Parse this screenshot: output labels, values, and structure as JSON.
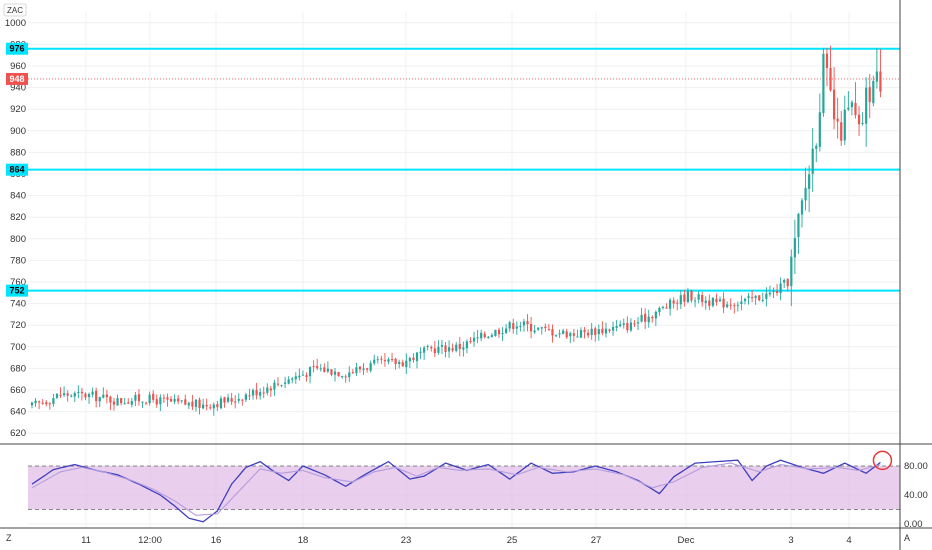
{
  "symbol": "ZAC",
  "corner_left": "Z",
  "corner_right": "A",
  "chart_data": [
    {
      "type": "candlestick",
      "title": "",
      "ylim": [
        610,
        1010
      ],
      "y_ticks": [
        620,
        640,
        660,
        680,
        700,
        720,
        740,
        760,
        780,
        800,
        820,
        840,
        860,
        880,
        900,
        920,
        940,
        960,
        980,
        1000
      ],
      "x_ticks": [
        "11",
        "12:00",
        "16",
        "18",
        "23",
        "25",
        "27",
        "Dec",
        "3",
        "4"
      ],
      "grid": true,
      "horizontal_levels": [
        {
          "value": 976,
          "label": "976",
          "color": "#00e5ff"
        },
        {
          "value": 864,
          "label": "864",
          "color": "#00e5ff"
        },
        {
          "value": 752,
          "label": "752",
          "color": "#00e5ff"
        }
      ],
      "last_price": {
        "value": 948,
        "label": "948",
        "color": "#ef5350"
      },
      "up_color": "#26a69a",
      "down_color": "#ef5350",
      "anchors": [
        [
          0,
          645
        ],
        [
          8,
          656
        ],
        [
          16,
          655
        ],
        [
          24,
          650
        ],
        [
          32,
          652
        ],
        [
          40,
          648
        ],
        [
          48,
          646
        ],
        [
          56,
          651
        ],
        [
          64,
          660
        ],
        [
          72,
          670
        ],
        [
          80,
          680
        ],
        [
          88,
          676
        ],
        [
          96,
          684
        ],
        [
          104,
          686
        ],
        [
          112,
          698
        ],
        [
          120,
          700
        ],
        [
          128,
          712
        ],
        [
          136,
          722
        ],
        [
          144,
          715
        ],
        [
          152,
          712
        ],
        [
          160,
          716
        ],
        [
          168,
          720
        ],
        [
          176,
          734
        ],
        [
          184,
          748
        ],
        [
          192,
          740
        ],
        [
          200,
          742
        ],
        [
          208,
          750
        ],
        [
          212,
          760
        ],
        [
          216,
          830
        ],
        [
          220,
          900
        ],
        [
          222,
          960
        ],
        [
          224,
          930
        ],
        [
          226,
          895
        ],
        [
          228,
          910
        ],
        [
          230,
          920
        ],
        [
          232,
          895
        ],
        [
          234,
          930
        ],
        [
          236,
          945
        ],
        [
          238,
          948
        ]
      ]
    },
    {
      "type": "line",
      "title": "",
      "ylim": [
        0,
        100
      ],
      "y_ticks": [
        0,
        40,
        80
      ],
      "y_tick_labels": [
        "0.00",
        "40.00",
        "80.00"
      ],
      "band": [
        20,
        80
      ],
      "band_color": "#e1bee7",
      "series": [
        {
          "color": "#3f3fbf",
          "anchors": [
            [
              0,
              55
            ],
            [
              6,
              75
            ],
            [
              12,
              82
            ],
            [
              18,
              74
            ],
            [
              24,
              68
            ],
            [
              30,
              55
            ],
            [
              36,
              40
            ],
            [
              40,
              25
            ],
            [
              44,
              8
            ],
            [
              48,
              3
            ],
            [
              52,
              18
            ],
            [
              56,
              55
            ],
            [
              60,
              78
            ],
            [
              64,
              86
            ],
            [
              68,
              72
            ],
            [
              72,
              60
            ],
            [
              76,
              80
            ],
            [
              82,
              68
            ],
            [
              88,
              52
            ],
            [
              94,
              70
            ],
            [
              100,
              86
            ],
            [
              106,
              62
            ],
            [
              110,
              66
            ],
            [
              116,
              84
            ],
            [
              122,
              74
            ],
            [
              128,
              82
            ],
            [
              134,
              62
            ],
            [
              140,
              84
            ],
            [
              146,
              70
            ],
            [
              152,
              72
            ],
            [
              158,
              80
            ],
            [
              164,
              72
            ],
            [
              170,
              60
            ],
            [
              176,
              42
            ],
            [
              180,
              65
            ],
            [
              186,
              84
            ],
            [
              192,
              86
            ],
            [
              198,
              88
            ],
            [
              202,
              60
            ],
            [
              206,
              80
            ],
            [
              210,
              88
            ],
            [
              216,
              78
            ],
            [
              222,
              70
            ],
            [
              228,
              84
            ],
            [
              234,
              70
            ],
            [
              238,
              85
            ]
          ]
        },
        {
          "color": "#b39ddb",
          "anchors": [
            [
              0,
              50
            ],
            [
              8,
              72
            ],
            [
              14,
              78
            ],
            [
              20,
              72
            ],
            [
              28,
              60
            ],
            [
              34,
              48
            ],
            [
              40,
              32
            ],
            [
              46,
              12
            ],
            [
              52,
              14
            ],
            [
              58,
              45
            ],
            [
              64,
              76
            ],
            [
              70,
              70
            ],
            [
              76,
              74
            ],
            [
              82,
              64
            ],
            [
              90,
              58
            ],
            [
              96,
              72
            ],
            [
              102,
              78
            ],
            [
              108,
              66
            ],
            [
              114,
              78
            ],
            [
              120,
              74
            ],
            [
              128,
              76
            ],
            [
              136,
              68
            ],
            [
              142,
              78
            ],
            [
              150,
              72
            ],
            [
              158,
              76
            ],
            [
              166,
              68
            ],
            [
              174,
              50
            ],
            [
              180,
              58
            ],
            [
              188,
              78
            ],
            [
              196,
              84
            ],
            [
              204,
              72
            ],
            [
              210,
              82
            ],
            [
              218,
              76
            ],
            [
              226,
              78
            ],
            [
              232,
              74
            ],
            [
              238,
              82
            ]
          ]
        }
      ]
    }
  ]
}
